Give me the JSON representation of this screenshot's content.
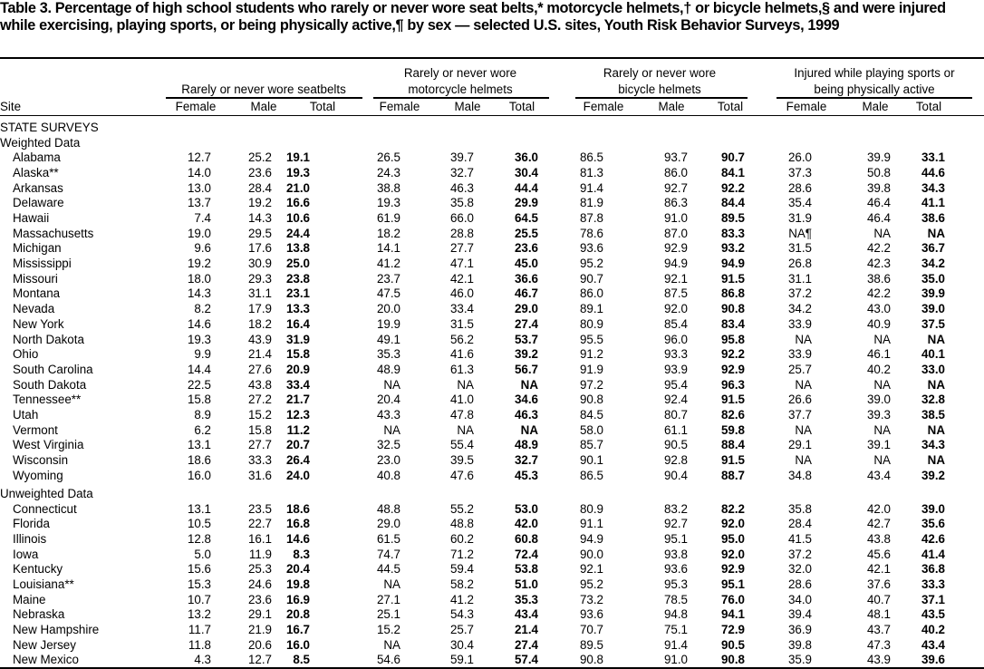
{
  "title": "Table 3. Percentage of high school students who rarely or never wore seat belts,* motorcycle helmets,† or bicycle helmets,§ and were injured while exercising, playing sports, or being physically active,¶ by sex — selected U.S. sites, Youth Risk Behavior Surveys, 1999",
  "header": {
    "groups": [
      [
        "Rarely or never wore seatbelts"
      ],
      [
        "Rarely or never wore",
        "motorcycle helmets"
      ],
      [
        "Rarely or never wore",
        "bicycle helmets"
      ],
      [
        "Injured while playing sports or",
        "being physically active"
      ]
    ],
    "columns": [
      "Site",
      "Female",
      "Male",
      "Total",
      "Female",
      "Male",
      "Total",
      "Female",
      "Male",
      "Total",
      "Female",
      "Male",
      "Total"
    ]
  },
  "body": {
    "heading": "STATE SURVEYS",
    "sections": [
      {
        "label": "Weighted Data",
        "rows": [
          {
            "site": "Alabama",
            "values": [
              "12.7",
              "25.2",
              "19.1",
              "26.5",
              "39.7",
              "36.0",
              "86.5",
              "93.7",
              "90.7",
              "26.0",
              "39.9",
              "33.1"
            ]
          },
          {
            "site": "Alaska**",
            "values": [
              "14.0",
              "23.6",
              "19.3",
              "24.3",
              "32.7",
              "30.4",
              "81.3",
              "86.0",
              "84.1",
              "37.3",
              "50.8",
              "44.6"
            ]
          },
          {
            "site": "Arkansas",
            "values": [
              "13.0",
              "28.4",
              "21.0",
              "38.8",
              "46.3",
              "44.4",
              "91.4",
              "92.7",
              "92.2",
              "28.6",
              "39.8",
              "34.3"
            ]
          },
          {
            "site": "Delaware",
            "values": [
              "13.7",
              "19.2",
              "16.6",
              "19.3",
              "35.8",
              "29.9",
              "81.9",
              "86.3",
              "84.4",
              "35.4",
              "46.4",
              "41.1"
            ]
          },
          {
            "site": "Hawaii",
            "values": [
              "7.4",
              "14.3",
              "10.6",
              "61.9",
              "66.0",
              "64.5",
              "87.8",
              "91.0",
              "89.5",
              "31.9",
              "46.4",
              "38.6"
            ]
          },
          {
            "site": "Massachusetts",
            "values": [
              "19.0",
              "29.5",
              "24.4",
              "18.2",
              "28.8",
              "25.5",
              "78.6",
              "87.0",
              "83.3",
              "NA¶",
              "NA",
              "NA"
            ]
          },
          {
            "site": "Michigan",
            "values": [
              "9.6",
              "17.6",
              "13.8",
              "14.1",
              "27.7",
              "23.6",
              "93.6",
              "92.9",
              "93.2",
              "31.5",
              "42.2",
              "36.7"
            ]
          },
          {
            "site": "Mississippi",
            "values": [
              "19.2",
              "30.9",
              "25.0",
              "41.2",
              "47.1",
              "45.0",
              "95.2",
              "94.9",
              "94.9",
              "26.8",
              "42.3",
              "34.2"
            ]
          },
          {
            "site": "Missouri",
            "values": [
              "18.0",
              "29.3",
              "23.8",
              "23.7",
              "42.1",
              "36.6",
              "90.7",
              "92.1",
              "91.5",
              "31.1",
              "38.6",
              "35.0"
            ]
          },
          {
            "site": "Montana",
            "values": [
              "14.3",
              "31.1",
              "23.1",
              "47.5",
              "46.0",
              "46.7",
              "86.0",
              "87.5",
              "86.8",
              "37.2",
              "42.2",
              "39.9"
            ]
          },
          {
            "site": "Nevada",
            "values": [
              "8.2",
              "17.9",
              "13.3",
              "20.0",
              "33.4",
              "29.0",
              "89.1",
              "92.0",
              "90.8",
              "34.2",
              "43.0",
              "39.0"
            ]
          },
          {
            "site": "New York",
            "values": [
              "14.6",
              "18.2",
              "16.4",
              "19.9",
              "31.5",
              "27.4",
              "80.9",
              "85.4",
              "83.4",
              "33.9",
              "40.9",
              "37.5"
            ]
          },
          {
            "site": "North Dakota",
            "values": [
              "19.3",
              "43.9",
              "31.9",
              "49.1",
              "56.2",
              "53.7",
              "95.5",
              "96.0",
              "95.8",
              "NA",
              "NA",
              "NA"
            ]
          },
          {
            "site": "Ohio",
            "values": [
              "9.9",
              "21.4",
              "15.8",
              "35.3",
              "41.6",
              "39.2",
              "91.2",
              "93.3",
              "92.2",
              "33.9",
              "46.1",
              "40.1"
            ]
          },
          {
            "site": "South Carolina",
            "values": [
              "14.4",
              "27.6",
              "20.9",
              "48.9",
              "61.3",
              "56.7",
              "91.9",
              "93.9",
              "92.9",
              "25.7",
              "40.2",
              "33.0"
            ]
          },
          {
            "site": "South Dakota",
            "values": [
              "22.5",
              "43.8",
              "33.4",
              "NA",
              "NA",
              "NA",
              "97.2",
              "95.4",
              "96.3",
              "NA",
              "NA",
              "NA"
            ]
          },
          {
            "site": "Tennessee**",
            "values": [
              "15.8",
              "27.2",
              "21.7",
              "20.4",
              "41.0",
              "34.6",
              "90.8",
              "92.4",
              "91.5",
              "26.6",
              "39.0",
              "32.8"
            ]
          },
          {
            "site": "Utah",
            "values": [
              "8.9",
              "15.2",
              "12.3",
              "43.3",
              "47.8",
              "46.3",
              "84.5",
              "80.7",
              "82.6",
              "37.7",
              "39.3",
              "38.5"
            ]
          },
          {
            "site": "Vermont",
            "values": [
              "6.2",
              "15.8",
              "11.2",
              "NA",
              "NA",
              "NA",
              "58.0",
              "61.1",
              "59.8",
              "NA",
              "NA",
              "NA"
            ]
          },
          {
            "site": "West Virginia",
            "values": [
              "13.1",
              "27.7",
              "20.7",
              "32.5",
              "55.4",
              "48.9",
              "85.7",
              "90.5",
              "88.4",
              "29.1",
              "39.1",
              "34.3"
            ]
          },
          {
            "site": "Wisconsin",
            "values": [
              "18.6",
              "33.3",
              "26.4",
              "23.0",
              "39.5",
              "32.7",
              "90.1",
              "92.8",
              "91.5",
              "NA",
              "NA",
              "NA"
            ]
          },
          {
            "site": "Wyoming",
            "values": [
              "16.0",
              "31.6",
              "24.0",
              "40.8",
              "47.6",
              "45.3",
              "86.5",
              "90.4",
              "88.7",
              "34.8",
              "43.4",
              "39.2"
            ]
          }
        ]
      },
      {
        "label": "Unweighted Data",
        "rows": [
          {
            "site": "Connecticut",
            "values": [
              "13.1",
              "23.5",
              "18.6",
              "48.8",
              "55.2",
              "53.0",
              "80.9",
              "83.2",
              "82.2",
              "35.8",
              "42.0",
              "39.0"
            ]
          },
          {
            "site": "Florida",
            "values": [
              "10.5",
              "22.7",
              "16.8",
              "29.0",
              "48.8",
              "42.0",
              "91.1",
              "92.7",
              "92.0",
              "28.4",
              "42.7",
              "35.6"
            ]
          },
          {
            "site": "Illinois",
            "values": [
              "12.8",
              "16.1",
              "14.6",
              "61.5",
              "60.2",
              "60.8",
              "94.9",
              "95.1",
              "95.0",
              "41.5",
              "43.8",
              "42.6"
            ]
          },
          {
            "site": "Iowa",
            "values": [
              "5.0",
              "11.9",
              "8.3",
              "74.7",
              "71.2",
              "72.4",
              "90.0",
              "93.8",
              "92.0",
              "37.2",
              "45.6",
              "41.4"
            ]
          },
          {
            "site": "Kentucky",
            "values": [
              "15.6",
              "25.3",
              "20.4",
              "44.5",
              "59.4",
              "53.8",
              "92.1",
              "93.6",
              "92.9",
              "32.0",
              "42.1",
              "36.8"
            ]
          },
          {
            "site": "Louisiana**",
            "values": [
              "15.3",
              "24.6",
              "19.8",
              "NA",
              "58.2",
              "51.0",
              "95.2",
              "95.3",
              "95.1",
              "28.6",
              "37.6",
              "33.3"
            ]
          },
          {
            "site": "Maine",
            "values": [
              "10.7",
              "23.6",
              "16.9",
              "27.1",
              "41.2",
              "35.3",
              "73.2",
              "78.5",
              "76.0",
              "34.0",
              "40.7",
              "37.1"
            ]
          },
          {
            "site": "Nebraska",
            "values": [
              "13.2",
              "29.1",
              "20.8",
              "25.1",
              "54.3",
              "43.4",
              "93.6",
              "94.8",
              "94.1",
              "39.4",
              "48.1",
              "43.5"
            ]
          },
          {
            "site": "New Hampshire",
            "values": [
              "11.7",
              "21.9",
              "16.7",
              "15.2",
              "25.7",
              "21.4",
              "70.7",
              "75.1",
              "72.9",
              "36.9",
              "43.7",
              "40.2"
            ]
          },
          {
            "site": "New Jersey",
            "values": [
              "11.8",
              "20.6",
              "16.0",
              "NA",
              "30.4",
              "27.4",
              "89.5",
              "91.4",
              "90.5",
              "39.8",
              "47.3",
              "43.4"
            ]
          },
          {
            "site": "New Mexico",
            "values": [
              "4.3",
              "12.7",
              "8.5",
              "54.6",
              "59.1",
              "57.4",
              "90.8",
              "91.0",
              "90.8",
              "35.9",
              "43.9",
              "39.6"
            ]
          }
        ]
      }
    ]
  }
}
